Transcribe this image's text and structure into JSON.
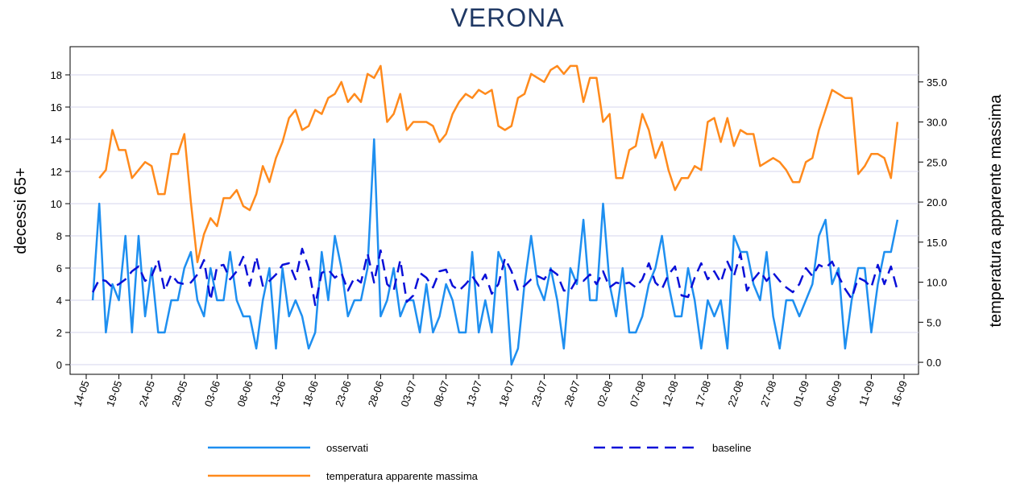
{
  "chart_data": {
    "type": "line",
    "title": "VERONA",
    "y_label": "decessi 65+",
    "y2_label": "temperatura apparente massima",
    "categories": [
      "14-05",
      null,
      null,
      null,
      null,
      "19-05",
      null,
      null,
      null,
      null,
      "24-05",
      null,
      null,
      null,
      null,
      "29-05",
      null,
      null,
      null,
      null,
      "03-06",
      null,
      null,
      null,
      null,
      "08-06",
      null,
      null,
      null,
      null,
      "13-06",
      null,
      null,
      null,
      null,
      "18-06",
      null,
      null,
      null,
      null,
      "23-06",
      null,
      null,
      null,
      null,
      "28-06",
      null,
      null,
      null,
      null,
      "03-07",
      null,
      null,
      null,
      null,
      "08-07",
      null,
      null,
      null,
      null,
      "13-07",
      null,
      null,
      null,
      null,
      "18-07",
      null,
      null,
      null,
      null,
      "23-07",
      null,
      null,
      null,
      null,
      "28-07",
      null,
      null,
      null,
      null,
      "02-08",
      null,
      null,
      null,
      null,
      "07-08",
      null,
      null,
      null,
      null,
      "12-08",
      null,
      null,
      null,
      null,
      "17-08",
      null,
      null,
      null,
      null,
      "22-08",
      null,
      null,
      null,
      null,
      "27-08",
      null,
      null,
      null,
      null,
      "01-09",
      null,
      null,
      null,
      null,
      "06-09",
      null,
      null,
      null,
      null,
      "11-09",
      null,
      null,
      null,
      null,
      "16-09"
    ],
    "series": [
      {
        "name": "osservati",
        "color": "#1e8ff0",
        "dash": false,
        "axis": "y",
        "values": [
          null,
          4,
          10,
          2,
          5,
          4,
          8,
          2,
          8,
          3,
          6,
          2,
          2,
          4,
          4,
          6,
          7,
          4,
          3,
          6,
          4,
          4,
          7,
          4,
          3,
          3,
          1,
          4,
          6,
          1,
          6,
          3,
          4,
          3,
          1,
          2,
          7,
          4,
          8,
          6,
          3,
          4,
          4,
          6,
          14,
          3,
          4,
          6,
          3,
          4,
          4,
          2,
          5,
          2,
          3,
          5,
          4,
          2,
          2,
          7,
          2,
          4,
          2,
          7,
          6,
          0,
          1,
          5,
          8,
          5,
          4,
          6,
          4,
          1,
          6,
          5,
          9,
          4,
          4,
          10,
          5,
          3,
          6,
          2,
          2,
          3,
          5,
          6,
          8,
          5,
          3,
          3,
          6,
          4,
          1,
          4,
          3,
          4,
          1,
          8,
          7,
          7,
          5,
          4,
          7,
          3,
          1,
          4,
          4,
          3,
          4,
          5,
          8,
          9,
          5,
          6,
          1,
          4,
          6,
          6,
          2,
          5,
          7,
          7,
          9,
          null
        ]
      },
      {
        "name": "baseline",
        "color": "#0a10d8",
        "dash": true,
        "axis": "y",
        "values": [
          null,
          4.5,
          5.3,
          5.2,
          4.8,
          5.0,
          5.3,
          5.8,
          6.1,
          5.2,
          5.5,
          6.5,
          4.6,
          5.6,
          5.1,
          5.0,
          5.1,
          5.6,
          6.5,
          4.0,
          6.1,
          6.2,
          5.3,
          5.8,
          6.7,
          4.9,
          6.7,
          4.9,
          5.2,
          5.6,
          6.2,
          6.3,
          5.3,
          7.2,
          6.0,
          3.7,
          5.7,
          5.9,
          5.4,
          5.7,
          4.6,
          5.4,
          5.1,
          6.9,
          5.1,
          7.1,
          5.0,
          4.6,
          6.5,
          3.9,
          4.3,
          5.7,
          5.4,
          4.8,
          5.8,
          5.9,
          4.9,
          4.6,
          5.0,
          5.5,
          4.9,
          5.6,
          4.4,
          5.0,
          6.6,
          5.8,
          4.6,
          4.9,
          5.3,
          5.5,
          5.3,
          5.9,
          5.6,
          4.6,
          4.6,
          5.3,
          5.2,
          5.6,
          5.0,
          5.8,
          4.8,
          5.1,
          5.0,
          5.1,
          4.8,
          5.3,
          6.3,
          5.1,
          4.7,
          5.6,
          6.1,
          4.3,
          4.2,
          5.4,
          6.3,
          5.3,
          5.8,
          5.1,
          6.4,
          5.5,
          6.9,
          4.6,
          5.3,
          5.8,
          5.2,
          5.7,
          5.2,
          4.8,
          4.5,
          5.0,
          6.0,
          5.5,
          6.2,
          6.0,
          6.4,
          5.5,
          4.7,
          4.1,
          5.4,
          5.2,
          4.8,
          6.2,
          5.0,
          6.1,
          4.6,
          null
        ]
      },
      {
        "name": "temperatura apparente massima",
        "color": "#ff8a1c",
        "dash": false,
        "axis": "y2",
        "values": [
          null,
          null,
          23.0,
          24.0,
          29.0,
          26.5,
          26.5,
          23.0,
          24.0,
          25.0,
          24.5,
          21.0,
          21.0,
          26.0,
          26.0,
          28.5,
          20.0,
          12.5,
          16.0,
          18.0,
          17.0,
          20.5,
          20.5,
          21.5,
          19.5,
          19.0,
          21.0,
          24.5,
          22.5,
          25.5,
          27.5,
          30.5,
          31.5,
          29.0,
          29.5,
          31.5,
          31.0,
          33.0,
          33.5,
          35.0,
          32.5,
          33.5,
          32.5,
          36.0,
          35.5,
          37.0,
          30.0,
          31.0,
          33.5,
          29.0,
          30.0,
          30.0,
          30.0,
          29.5,
          27.5,
          28.5,
          31.0,
          32.5,
          33.5,
          33.0,
          34.0,
          33.5,
          34.0,
          29.5,
          29.0,
          29.5,
          33.0,
          33.5,
          36.0,
          35.5,
          35.0,
          36.5,
          37.0,
          36.0,
          37.0,
          37.0,
          32.5,
          35.5,
          35.5,
          30.0,
          31.0,
          23.0,
          23.0,
          26.5,
          27.0,
          31.0,
          29.0,
          25.5,
          27.5,
          24.0,
          21.5,
          23.0,
          23.0,
          24.5,
          24.0,
          30.0,
          30.5,
          27.5,
          30.5,
          27.0,
          29.0,
          28.5,
          28.5,
          24.5,
          25.0,
          25.5,
          25.0,
          24.0,
          22.5,
          22.5,
          25.0,
          25.5,
          29.0,
          31.5,
          34.0,
          33.5,
          33.0,
          33.0,
          23.5,
          24.5,
          26.0,
          26.0,
          25.5,
          23.0,
          30.0,
          null
        ]
      }
    ],
    "ylim": [
      -0.6,
      19.75
    ],
    "yticks": [
      0,
      2,
      4,
      6,
      8,
      10,
      12,
      14,
      16,
      18
    ],
    "y2lim": [
      -1.5,
      39.4
    ],
    "y2ticks": [
      {
        "value": 0,
        "label": "0.0"
      },
      {
        "value": 5,
        "label": "5.0"
      },
      {
        "value": 10,
        "label": "10.0"
      },
      {
        "value": 15,
        "label": "15.0"
      },
      {
        "value": 20,
        "label": "20.0"
      },
      {
        "value": 25,
        "label": "25.0"
      },
      {
        "value": 30,
        "label": "30.0"
      },
      {
        "value": 35,
        "label": "35.0"
      }
    ],
    "grid": true
  }
}
